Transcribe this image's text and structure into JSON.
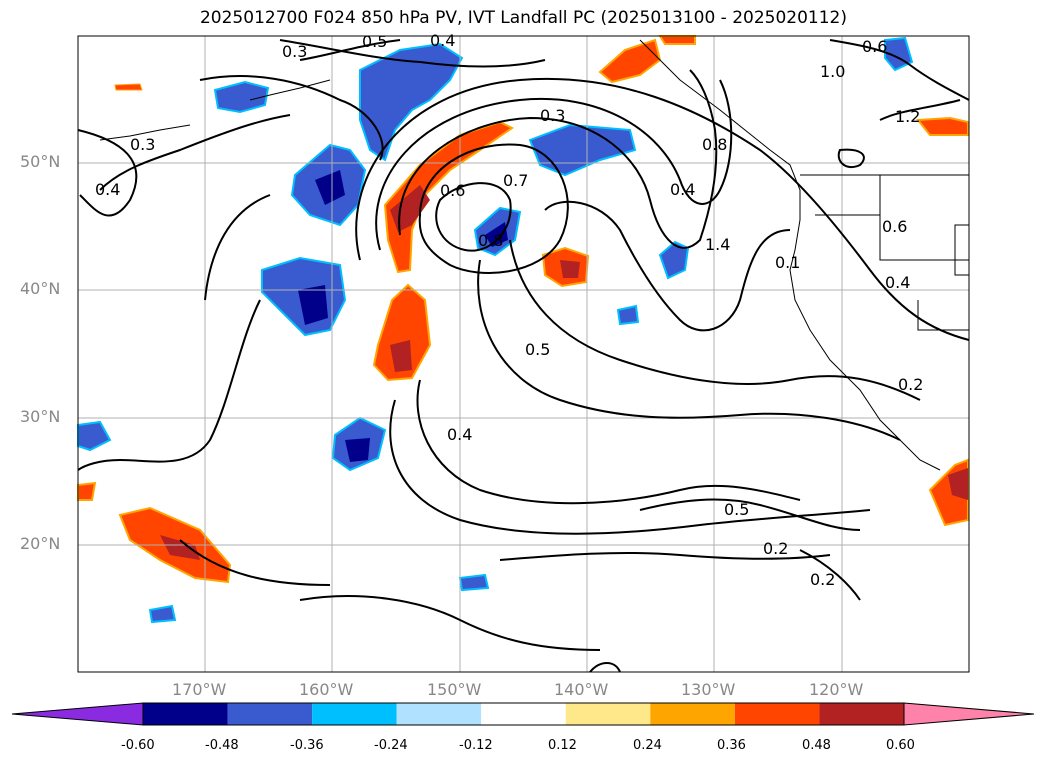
{
  "title": "2025012700 F024 850 hPa PV, IVT Landfall PC (2025013100 - 2025020112)",
  "lon_ticks": [
    "170°W",
    "160°W",
    "150°W",
    "140°W",
    "130°W",
    "120°W"
  ],
  "lat_ticks": [
    "50°N",
    "40°N",
    "30°N",
    "20°N"
  ],
  "colorbar": {
    "levels": [
      "-0.60",
      "-0.48",
      "-0.36",
      "-0.24",
      "-0.12",
      "0.12",
      "0.24",
      "0.36",
      "0.48",
      "0.60"
    ],
    "colors": [
      "#8a2be2",
      "#00008b",
      "#3a5bd0",
      "#00bfff",
      "#b0e2ff",
      "#ffffff",
      "#ffe88a",
      "#ffa500",
      "#ff4500",
      "#b22222",
      "#ff82ab"
    ]
  },
  "contour_labels": [
    "0.3",
    "0.5",
    "0.4",
    "0.6",
    "1.0",
    "0.3",
    "0.3",
    "0.4",
    "0.6",
    "0.7",
    "0.8",
    "0.8",
    "0.4",
    "1.4",
    "1.2",
    "0.6",
    "0.1",
    "0.4",
    "0.5",
    "0.4",
    "0.2",
    "0.5",
    "0.2",
    "0.2"
  ]
}
